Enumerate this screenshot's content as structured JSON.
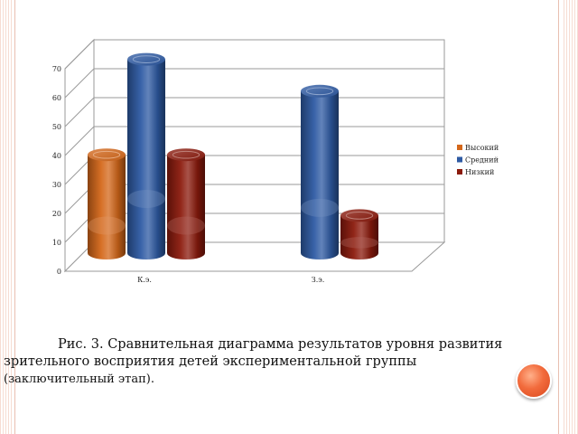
{
  "chart_data": {
    "type": "bar",
    "style": "3d-cylinder",
    "categories": [
      "К.э.",
      "З.э."
    ],
    "series": [
      {
        "name": "Высокий",
        "values": [
          34,
          0
        ],
        "color": "#d4671a"
      },
      {
        "name": "Средний",
        "values": [
          67,
          56
        ],
        "color": "#2e5aa3"
      },
      {
        "name": "Низкий",
        "values": [
          34,
          13
        ],
        "color": "#8b1a0c"
      }
    ],
    "ylim": [
      0,
      70
    ],
    "yticks": [
      "0",
      "10",
      "20",
      "30",
      "40",
      "50",
      "60",
      "70"
    ],
    "grid": true,
    "legend_position": "right",
    "title": "",
    "xlabel": "",
    "ylabel": ""
  },
  "caption": {
    "line1": "Рис. 3. Сравнительная диаграмма результатов уровня развития",
    "line2": "зрительного восприятия детей экспериментальной группы",
    "line3": "(заключительный этап)."
  }
}
